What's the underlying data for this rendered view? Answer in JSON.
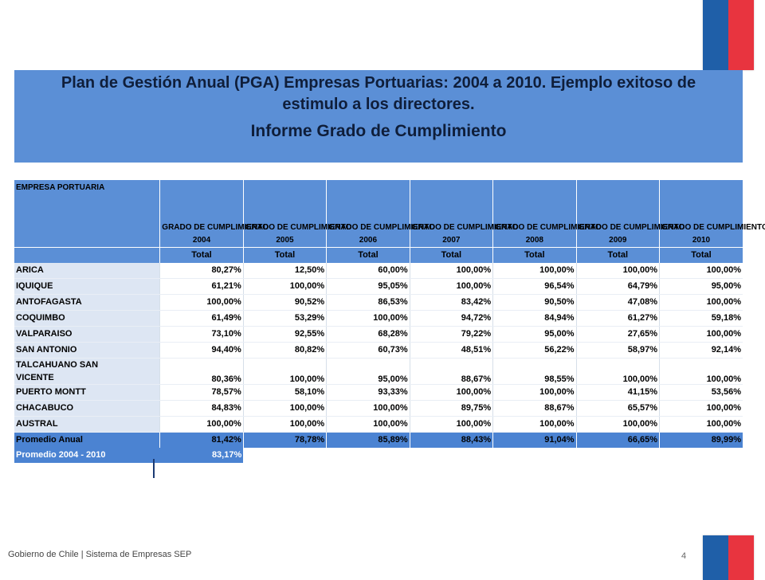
{
  "banner": {
    "line1": "Plan de Gestión Anual (PGA) Empresas Portuarias: 2004 a 2010. Ejemplo exitoso de estimulo a los directores.",
    "line2": "Informe Grado de Cumplimiento"
  },
  "table": {
    "first_header": "EMPRESA PORTUARIA",
    "col_header": "GRADO DE CUMPLIMIENTO",
    "years": [
      "2004",
      "2005",
      "2006",
      "2007",
      "2008",
      "2009",
      "2010"
    ],
    "sub_label": "Total",
    "rows": [
      {
        "name": "ARICA",
        "values": [
          "80,27%",
          "12,50%",
          "60,00%",
          "100,00%",
          "100,00%",
          "100,00%",
          "100,00%"
        ]
      },
      {
        "name": "IQUIQUE",
        "values": [
          "61,21%",
          "100,00%",
          "95,05%",
          "100,00%",
          "96,54%",
          "64,79%",
          "95,00%"
        ]
      },
      {
        "name": "ANTOFAGASTA",
        "values": [
          "100,00%",
          "90,52%",
          "86,53%",
          "83,42%",
          "90,50%",
          "47,08%",
          "100,00%"
        ]
      },
      {
        "name": "COQUIMBO",
        "values": [
          "61,49%",
          "53,29%",
          "100,00%",
          "94,72%",
          "84,94%",
          "61,27%",
          "59,18%"
        ]
      },
      {
        "name": "VALPARAISO",
        "values": [
          "73,10%",
          "92,55%",
          "68,28%",
          "79,22%",
          "95,00%",
          "27,65%",
          "100,00%"
        ]
      },
      {
        "name": "SAN ANTONIO",
        "values": [
          "94,40%",
          "80,82%",
          "60,73%",
          "48,51%",
          "56,22%",
          "58,97%",
          "92,14%"
        ]
      },
      {
        "name_line1": "TALCAHUANO  SAN",
        "name_line2": "VICENTE",
        "values": [
          "80,36%",
          "100,00%",
          "95,00%",
          "88,67%",
          "98,55%",
          "100,00%",
          "100,00%"
        ]
      },
      {
        "name": "PUERTO MONTT",
        "values": [
          "78,57%",
          "58,10%",
          "93,33%",
          "100,00%",
          "100,00%",
          "41,15%",
          "53,56%"
        ]
      },
      {
        "name": "CHACABUCO",
        "values": [
          "84,83%",
          "100,00%",
          "100,00%",
          "89,75%",
          "88,67%",
          "65,57%",
          "100,00%"
        ]
      },
      {
        "name": "AUSTRAL",
        "values": [
          "100,00%",
          "100,00%",
          "100,00%",
          "100,00%",
          "100,00%",
          "100,00%",
          "100,00%"
        ]
      }
    ],
    "promedio_anual": {
      "label": "Promedio Anual",
      "values": [
        "81,42%",
        "78,78%",
        "85,89%",
        "88,43%",
        "91,04%",
        "66,65%",
        "89,99%"
      ]
    },
    "promedio_total": {
      "label": "Promedio 2004 - 2010",
      "value": "83,17%"
    }
  },
  "footer": {
    "text": "Gobierno de Chile | Sistema de Empresas SEP",
    "page": "4"
  },
  "colors": {
    "header_blue": "#5b8fd6",
    "row_blue": "#dde6f3",
    "flag_blue": "#1f5fa8",
    "flag_red": "#e8343f"
  }
}
